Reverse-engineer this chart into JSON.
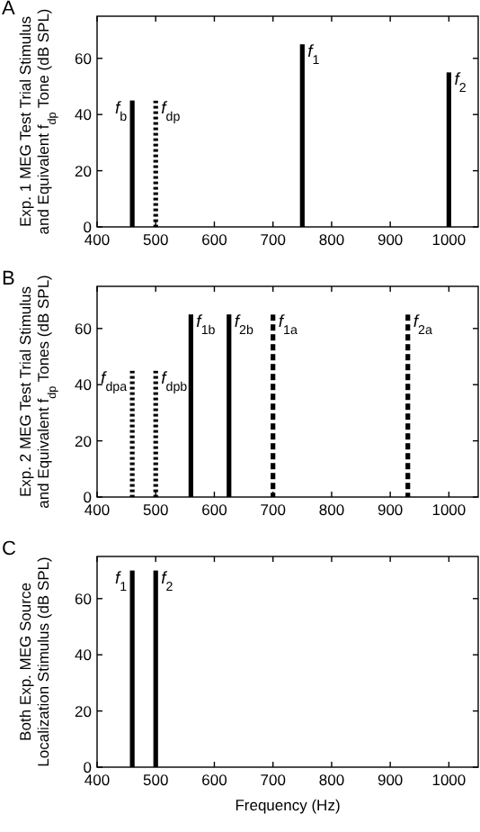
{
  "chart_data": [
    {
      "type": "bar",
      "title": "A",
      "ylabel": "Exp. 1 MEG Test Trial Stimulus\nand Equivalent f$_{dp}$ Tone (dB SPL)",
      "xlim": [
        400,
        1050
      ],
      "xticks": [
        400,
        500,
        600,
        700,
        800,
        900,
        1000
      ],
      "ylim": [
        0,
        75
      ],
      "yticks": [
        0,
        20,
        40,
        60
      ],
      "series": [
        {
          "name": "f$_{b}$",
          "color": "#000000",
          "line_style": "solid",
          "x": [
            460
          ],
          "values": [
            45
          ]
        },
        {
          "name": "f$_{dp}$",
          "color": "#000000",
          "line_style": "dotted",
          "x": [
            500
          ],
          "values": [
            45
          ]
        },
        {
          "name": "f$_{1}$",
          "color": "#000000",
          "line_style": "solid",
          "x": [
            750
          ],
          "values": [
            65
          ]
        },
        {
          "name": "f$_{2}$",
          "color": "#000000",
          "line_style": "solid",
          "x": [
            1000
          ],
          "values": [
            55
          ]
        }
      ]
    },
    {
      "type": "bar",
      "title": "B",
      "ylabel": "Exp. 2 MEG Test Trial Stimulus\nand Equivalent f$_{dp}$ Tones (dB SPL)",
      "xlim": [
        400,
        1050
      ],
      "xticks": [
        400,
        500,
        600,
        700,
        800,
        900,
        1000
      ],
      "ylim": [
        0,
        75
      ],
      "yticks": [
        0,
        20,
        40,
        60
      ],
      "series": [
        {
          "name": "f$_{dpa}$",
          "color": "#000000",
          "line_style": "dotted",
          "x": [
            460
          ],
          "values": [
            45
          ]
        },
        {
          "name": "f$_{dpb}$",
          "color": "#000000",
          "line_style": "dotted",
          "x": [
            500
          ],
          "values": [
            45
          ]
        },
        {
          "name": "f$_{1b}$",
          "color": "#000000",
          "line_style": "solid",
          "x": [
            560
          ],
          "values": [
            65
          ]
        },
        {
          "name": "f$_{2b}$",
          "color": "#000000",
          "line_style": "solid",
          "x": [
            625
          ],
          "values": [
            65
          ]
        },
        {
          "name": "f$_{1a}$",
          "color": "#000000",
          "line_style": "dashed",
          "x": [
            700
          ],
          "values": [
            65
          ]
        },
        {
          "name": "f$_{2a}$",
          "color": "#000000",
          "line_style": "dashed",
          "x": [
            930
          ],
          "values": [
            65
          ]
        }
      ]
    },
    {
      "type": "bar",
      "title": "C",
      "ylabel": "Both Exp. MEG Source\nLocalization Stimulus (dB SPL)",
      "xlabel": "Frequency (Hz)",
      "xlim": [
        400,
        1050
      ],
      "xticks": [
        400,
        500,
        600,
        700,
        800,
        900,
        1000
      ],
      "ylim": [
        0,
        75
      ],
      "yticks": [
        0,
        20,
        40,
        60
      ],
      "series": [
        {
          "name": "f$_{1}$",
          "color": "#000000",
          "line_style": "solid",
          "x": [
            460
          ],
          "values": [
            70
          ]
        },
        {
          "name": "f$_{2}$",
          "color": "#000000",
          "line_style": "solid",
          "x": [
            500
          ],
          "values": [
            70
          ]
        }
      ]
    }
  ]
}
